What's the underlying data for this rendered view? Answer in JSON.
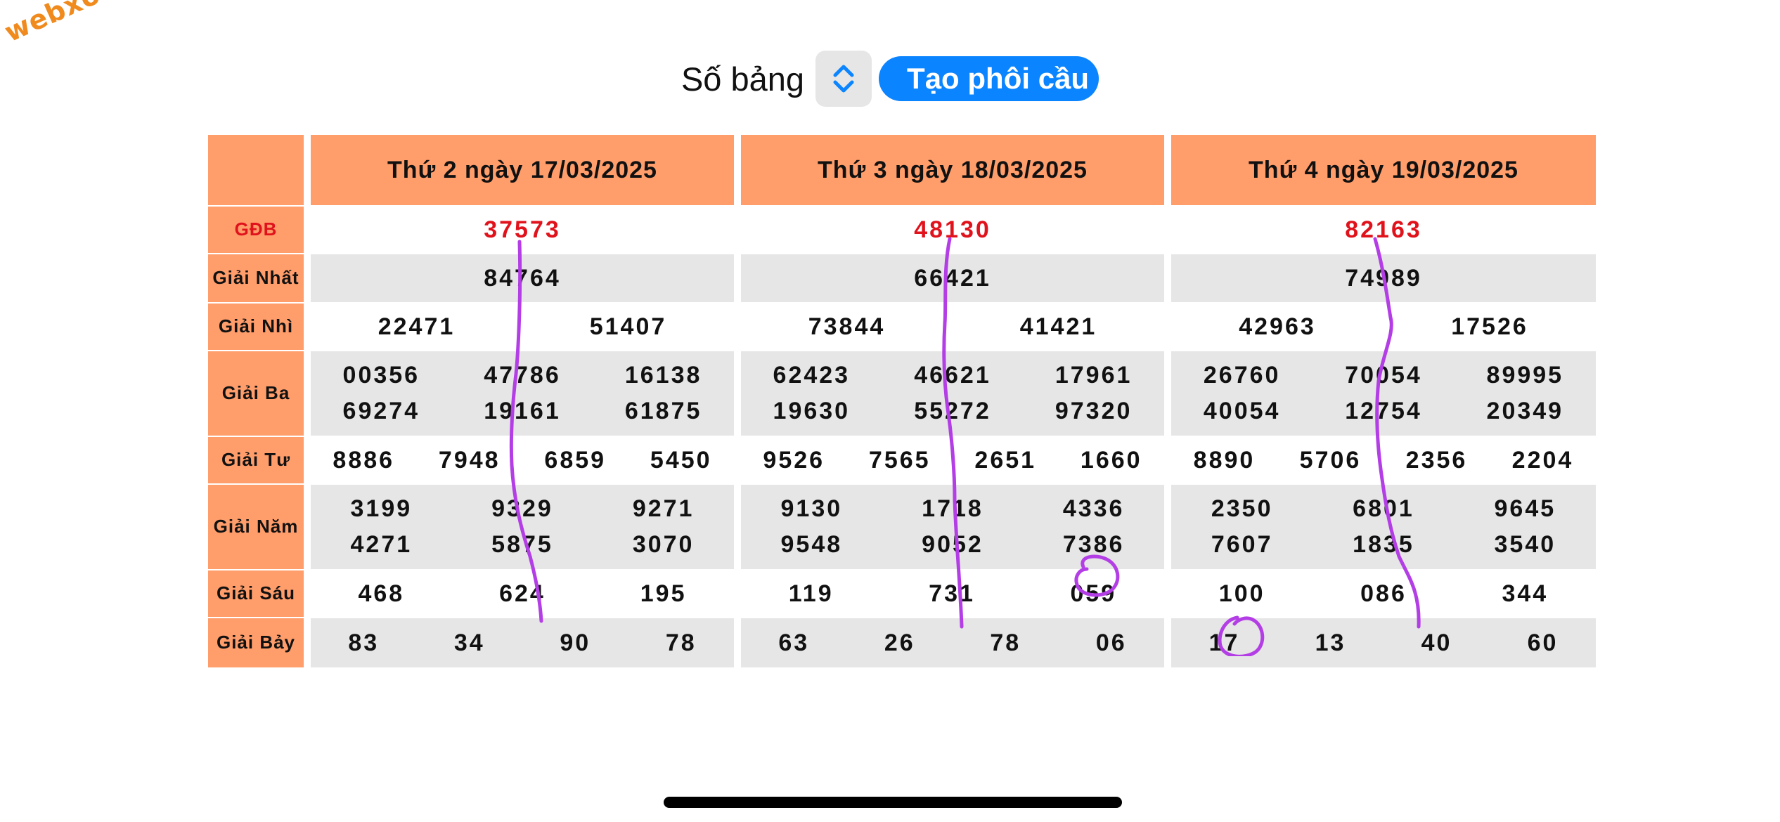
{
  "watermark": {
    "text": "webxoso.net"
  },
  "controls": {
    "label": "Số bảng",
    "stepper_icon": "up-down-chevron-icon",
    "button_label": "Tạo phôi cầu",
    "accent_color": "#0b84ff"
  },
  "table": {
    "header_color": "#ff9d6b",
    "special_color": "#e0121b",
    "days": [
      "Thứ 2 ngày 17/03/2025",
      "Thứ 3 ngày 18/03/2025",
      "Thứ 4 ngày 19/03/2025"
    ],
    "rows": [
      {
        "label": "GĐB",
        "cells": [
          [
            [
              "37573"
            ]
          ],
          [
            [
              "48130"
            ]
          ],
          [
            [
              "82163"
            ]
          ]
        ]
      },
      {
        "label": "Giải Nhất",
        "cells": [
          [
            [
              "84764"
            ]
          ],
          [
            [
              "66421"
            ]
          ],
          [
            [
              "74989"
            ]
          ]
        ]
      },
      {
        "label": "Giải Nhì",
        "cells": [
          [
            [
              "22471",
              "51407"
            ]
          ],
          [
            [
              "73844",
              "41421"
            ]
          ],
          [
            [
              "42963",
              "17526"
            ]
          ]
        ]
      },
      {
        "label": "Giải Ba",
        "cells": [
          [
            [
              "00356",
              "47786",
              "16138"
            ],
            [
              "69274",
              "19161",
              "61875"
            ]
          ],
          [
            [
              "62423",
              "46621",
              "17961"
            ],
            [
              "19630",
              "55272",
              "97320"
            ]
          ],
          [
            [
              "26760",
              "70054",
              "89995"
            ],
            [
              "40054",
              "12754",
              "20349"
            ]
          ]
        ]
      },
      {
        "label": "Giải Tư",
        "cells": [
          [
            [
              "8886",
              "7948",
              "6859",
              "5450"
            ]
          ],
          [
            [
              "9526",
              "7565",
              "2651",
              "1660"
            ]
          ],
          [
            [
              "8890",
              "5706",
              "2356",
              "2204"
            ]
          ]
        ]
      },
      {
        "label": "Giải Năm",
        "cells": [
          [
            [
              "3199",
              "9329",
              "9271"
            ],
            [
              "4271",
              "5875",
              "3070"
            ]
          ],
          [
            [
              "9130",
              "1718",
              "4336"
            ],
            [
              "9548",
              "9052",
              "7386"
            ]
          ],
          [
            [
              "2350",
              "6801",
              "9645"
            ],
            [
              "7607",
              "1835",
              "3540"
            ]
          ]
        ]
      },
      {
        "label": "Giải Sáu",
        "cells": [
          [
            [
              "468",
              "624",
              "195"
            ]
          ],
          [
            [
              "119",
              "731",
              "059"
            ]
          ],
          [
            [
              "100",
              "086",
              "344"
            ]
          ]
        ]
      },
      {
        "label": "Giải Bảy",
        "cells": [
          [
            [
              "83",
              "34",
              "90",
              "78"
            ]
          ],
          [
            [
              "63",
              "26",
              "78",
              "06"
            ]
          ],
          [
            [
              "17",
              "13",
              "40",
              "60"
            ]
          ]
        ]
      }
    ]
  },
  "annotations": {
    "ink_color": "#b43ee6"
  }
}
